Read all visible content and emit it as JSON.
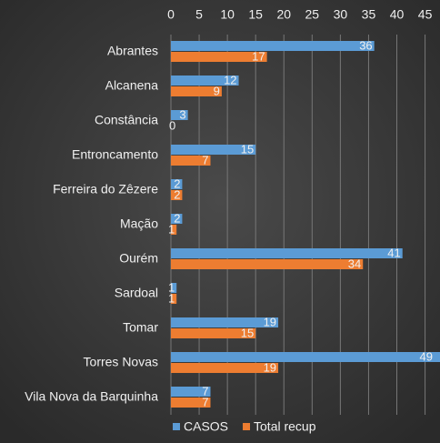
{
  "chart_data": {
    "type": "bar",
    "orientation": "horizontal",
    "categories": [
      "Abrantes",
      "Alcanena",
      "Constância",
      "Entroncamento",
      "Ferreira do Zêzere",
      "Mação",
      "Ourém",
      "Sardoal",
      "Tomar",
      "Torres Novas",
      "Vila Nova da Barquinha"
    ],
    "series": [
      {
        "name": "CASOS",
        "color": "#5b9bd5",
        "values": [
          36,
          12,
          3,
          15,
          2,
          2,
          41,
          1,
          19,
          49,
          7
        ]
      },
      {
        "name": "Total recup",
        "color": "#ed7d31",
        "values": [
          17,
          9,
          0,
          7,
          2,
          1,
          34,
          1,
          15,
          19,
          7
        ]
      }
    ],
    "xlim": [
      0,
      47
    ],
    "xticks": [
      0,
      5,
      10,
      15,
      20,
      25,
      30,
      35,
      40,
      45
    ],
    "grid": true,
    "legend": "bottom"
  }
}
